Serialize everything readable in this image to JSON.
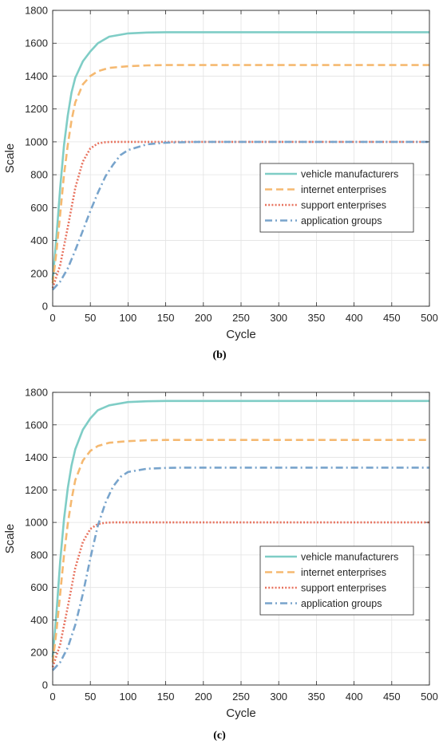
{
  "chart_data": [
    {
      "type": "line",
      "panel_label": "(b)",
      "xlabel": "Cycle",
      "ylabel": "Scale",
      "xlim": [
        0,
        500
      ],
      "ylim": [
        0,
        1800
      ],
      "xticks": [
        0,
        50,
        100,
        150,
        200,
        250,
        300,
        350,
        400,
        450,
        500
      ],
      "yticks": [
        0,
        200,
        400,
        600,
        800,
        1000,
        1200,
        1400,
        1600,
        1800
      ],
      "grid": true,
      "legend_position": "center-right",
      "series": [
        {
          "name": "vehicle manufacturers",
          "color": "#7fcdc6",
          "style": "solid",
          "x": [
            0,
            5,
            10,
            15,
            20,
            25,
            30,
            40,
            50,
            60,
            75,
            100,
            125,
            150,
            200,
            300,
            400,
            500
          ],
          "y": [
            160,
            420,
            720,
            980,
            1160,
            1300,
            1390,
            1490,
            1550,
            1600,
            1640,
            1660,
            1665,
            1667,
            1667,
            1667,
            1667,
            1667
          ]
        },
        {
          "name": "internet enterprises",
          "color": "#f5b971",
          "style": "dashed",
          "x": [
            0,
            5,
            10,
            15,
            20,
            25,
            30,
            40,
            50,
            60,
            75,
            100,
            125,
            150,
            200,
            300,
            400,
            500
          ],
          "y": [
            140,
            330,
            560,
            800,
            980,
            1130,
            1240,
            1350,
            1400,
            1430,
            1450,
            1460,
            1465,
            1467,
            1467,
            1467,
            1467,
            1467
          ]
        },
        {
          "name": "support enterprises",
          "color": "#e8735f",
          "style": "dotted",
          "x": [
            0,
            10,
            20,
            30,
            40,
            50,
            60,
            70,
            80,
            90,
            100,
            125,
            150,
            200,
            300,
            400,
            500
          ],
          "y": [
            110,
            250,
            480,
            720,
            880,
            960,
            990,
            998,
            1000,
            1000,
            1000,
            1000,
            1000,
            1000,
            1000,
            1000,
            1000
          ]
        },
        {
          "name": "application groups",
          "color": "#78a4cc",
          "style": "dashdot",
          "x": [
            0,
            10,
            20,
            30,
            40,
            50,
            60,
            70,
            80,
            90,
            100,
            125,
            150,
            175,
            200,
            300,
            400,
            500
          ],
          "y": [
            100,
            150,
            230,
            340,
            460,
            580,
            690,
            790,
            860,
            920,
            950,
            985,
            995,
            998,
            1000,
            1000,
            1000,
            1000
          ]
        }
      ]
    },
    {
      "type": "line",
      "panel_label": "(c)",
      "xlabel": "Cycle",
      "ylabel": "Scale",
      "xlim": [
        0,
        500
      ],
      "ylim": [
        0,
        1800
      ],
      "xticks": [
        0,
        50,
        100,
        150,
        200,
        250,
        300,
        350,
        400,
        450,
        500
      ],
      "yticks": [
        0,
        200,
        400,
        600,
        800,
        1000,
        1200,
        1400,
        1600,
        1800
      ],
      "grid": true,
      "legend_position": "center-right",
      "series": [
        {
          "name": "vehicle manufacturers",
          "color": "#7fcdc6",
          "style": "solid",
          "x": [
            0,
            5,
            10,
            15,
            20,
            25,
            30,
            40,
            50,
            60,
            75,
            100,
            125,
            150,
            200,
            300,
            400,
            500
          ],
          "y": [
            170,
            440,
            760,
            1020,
            1210,
            1350,
            1450,
            1570,
            1640,
            1690,
            1720,
            1740,
            1745,
            1747,
            1747,
            1747,
            1747,
            1747
          ]
        },
        {
          "name": "internet enterprises",
          "color": "#f5b971",
          "style": "dashed",
          "x": [
            0,
            5,
            10,
            15,
            20,
            25,
            30,
            40,
            50,
            60,
            75,
            100,
            125,
            150,
            200,
            300,
            400,
            500
          ],
          "y": [
            140,
            330,
            560,
            800,
            990,
            1140,
            1260,
            1380,
            1440,
            1470,
            1490,
            1500,
            1505,
            1507,
            1507,
            1507,
            1507,
            1507
          ]
        },
        {
          "name": "support enterprises",
          "color": "#e8735f",
          "style": "dotted",
          "x": [
            0,
            10,
            20,
            30,
            40,
            50,
            60,
            70,
            80,
            90,
            100,
            125,
            150,
            200,
            300,
            400,
            500
          ],
          "y": [
            110,
            250,
            480,
            720,
            880,
            960,
            990,
            998,
            1000,
            1000,
            1000,
            1000,
            1000,
            1000,
            1000,
            1000,
            1000
          ]
        },
        {
          "name": "application groups",
          "color": "#78a4cc",
          "style": "dashdot",
          "x": [
            0,
            10,
            20,
            30,
            40,
            50,
            60,
            70,
            80,
            90,
            100,
            125,
            150,
            175,
            200,
            300,
            400,
            500
          ],
          "y": [
            90,
            140,
            230,
            370,
            560,
            780,
            980,
            1120,
            1220,
            1280,
            1310,
            1330,
            1335,
            1337,
            1337,
            1337,
            1337,
            1337
          ]
        }
      ]
    }
  ]
}
